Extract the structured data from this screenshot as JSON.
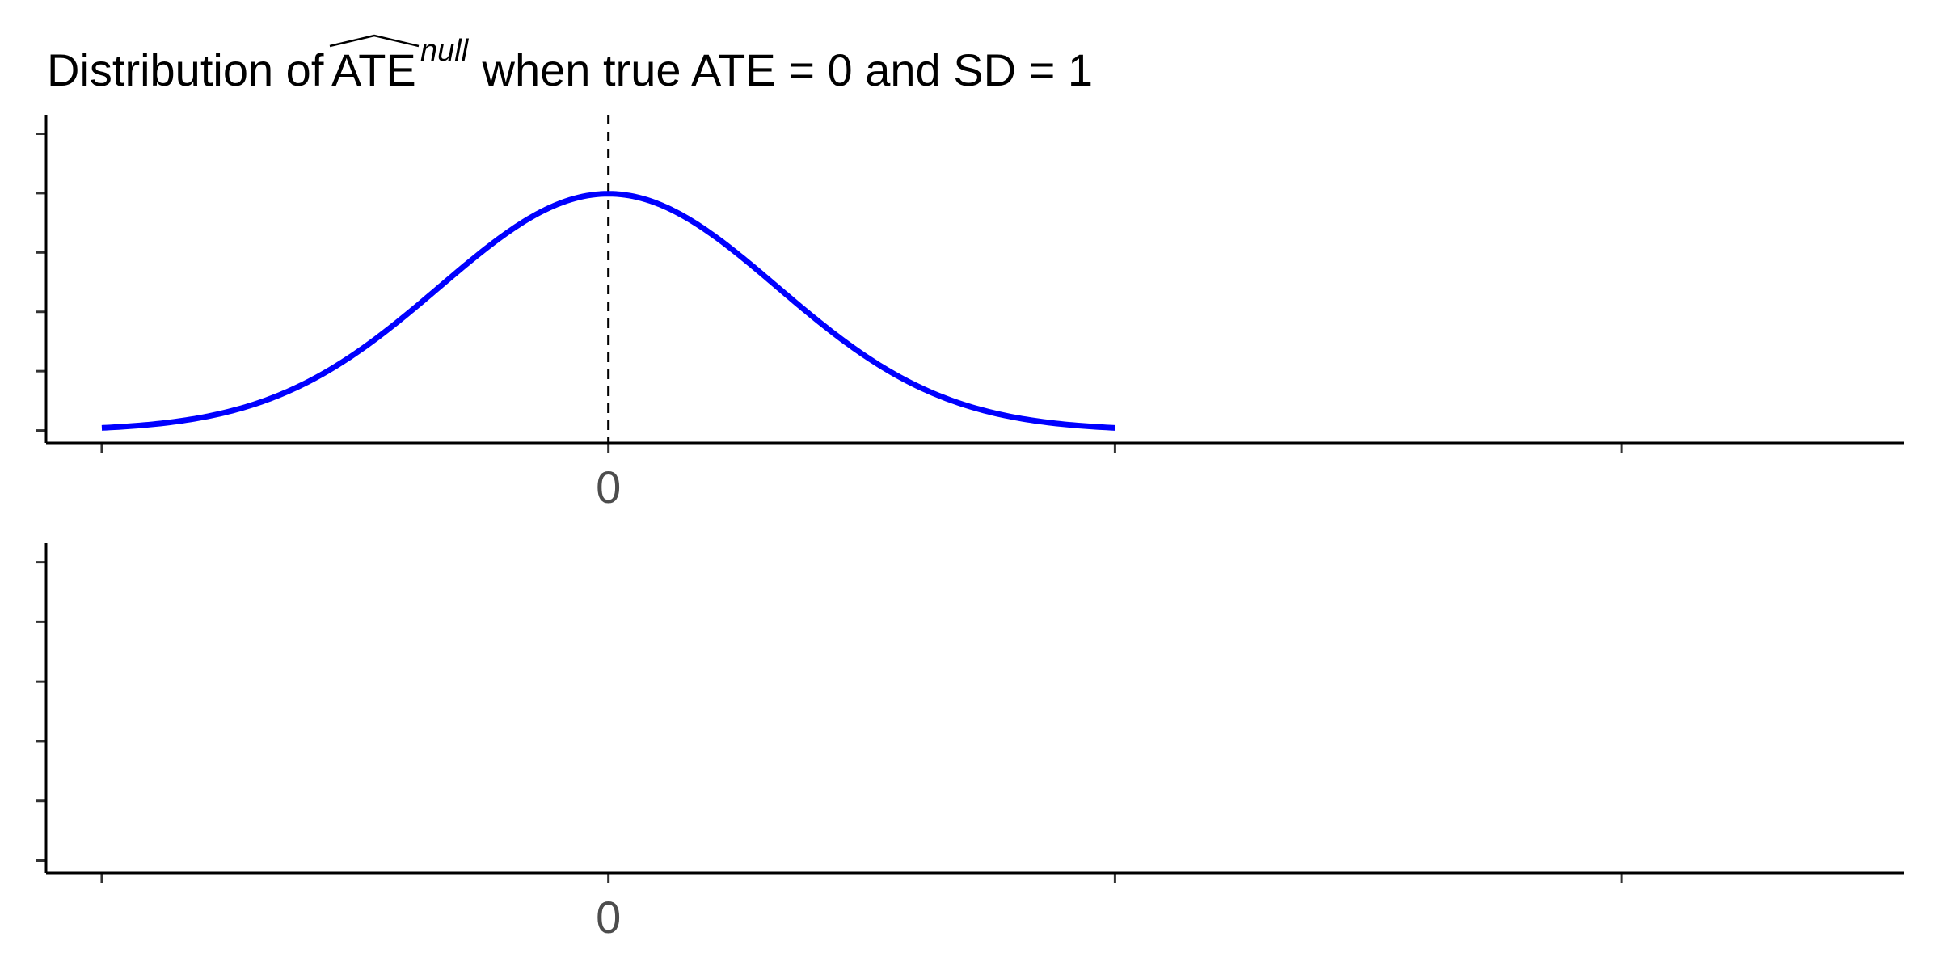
{
  "chart_data": [
    {
      "panel": "top",
      "type": "line",
      "title": {
        "prefix": "Distribution of ",
        "hat": "ATE",
        "superscript": "null",
        "suffix": " when true ATE = 0 and SD = 1"
      },
      "xlabel": "",
      "ylabel": "",
      "xlim": [
        -3.33,
        7.67
      ],
      "ylim": [
        -0.021,
        0.532
      ],
      "x_ticks": [
        -3,
        0,
        3,
        6
      ],
      "x_tick_labels": [
        "",
        "0",
        "",
        ""
      ],
      "y_ticks": [
        0,
        0.1,
        0.2,
        0.3,
        0.4,
        0.5
      ],
      "y_tick_labels": [
        "",
        "",
        "",
        "",
        "",
        ""
      ],
      "grid": false,
      "legend": "none",
      "reference_line": {
        "x": 0,
        "style": "dashed",
        "color": "#000000"
      },
      "series": [
        {
          "color": "#0000ff",
          "distribution": "normal",
          "mean": 0,
          "sd": 1,
          "x_range": [
            -3,
            3
          ],
          "x": [
            -3,
            -2.5,
            -2,
            -1.5,
            -1,
            -0.5,
            0,
            0.5,
            1,
            1.5,
            2,
            2.5,
            3
          ],
          "y": [
            0.0044,
            0.0175,
            0.054,
            0.1295,
            0.242,
            0.3521,
            0.3989,
            0.3521,
            0.242,
            0.1295,
            0.054,
            0.0175,
            0.0044
          ]
        }
      ]
    },
    {
      "panel": "bottom",
      "type": "line",
      "xlabel": "",
      "ylabel": "",
      "xlim": [
        -3.33,
        7.67
      ],
      "ylim": [
        -0.021,
        0.532
      ],
      "x_ticks": [
        -3,
        0,
        3,
        6
      ],
      "x_tick_labels": [
        "",
        "0",
        "",
        ""
      ],
      "y_ticks": [
        0,
        0.1,
        0.2,
        0.3,
        0.4,
        0.5
      ],
      "y_tick_labels": [
        "",
        "",
        "",
        "",
        "",
        ""
      ],
      "grid": false,
      "legend": "none",
      "series": []
    }
  ]
}
